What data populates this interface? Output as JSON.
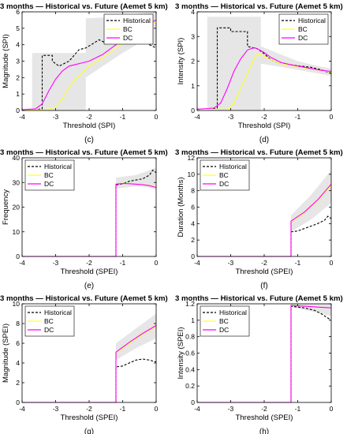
{
  "chart_data": [
    {
      "type": "line",
      "panel_label": "(c)",
      "title": "3 months — Historical vs. Future (Aemet 5 km)",
      "xlabel": "Threshold (SPI)",
      "ylabel": "Magnitude (SPI)",
      "xlim": [
        -4,
        0
      ],
      "ylim": [
        0,
        6
      ],
      "xticks": [
        -4,
        -3,
        -2,
        -1,
        0
      ],
      "yticks": [
        0,
        1,
        2,
        3,
        4,
        5,
        6
      ],
      "legend": [
        "Historical",
        "BC",
        "DC"
      ],
      "legend_position": "top-right",
      "series": [
        {
          "name": "Historical",
          "style": "dashed",
          "color": "#000000",
          "x": [
            -4,
            -3.6,
            -3.4,
            -3.4,
            -3.1,
            -3.1,
            -2.9,
            -2.6,
            -2.3,
            -2.1,
            -1.9,
            -1.7,
            -1.5,
            -1.3,
            -1.0,
            -0.7,
            -0.4,
            -0.2,
            0
          ],
          "y": [
            0.05,
            0.05,
            0.1,
            3.35,
            3.35,
            3.0,
            2.7,
            3.0,
            3.7,
            3.8,
            4.05,
            4.3,
            4.1,
            4.3,
            4.2,
            4.5,
            4.8,
            4.0,
            3.8
          ]
        },
        {
          "name": "BC",
          "style": "solid",
          "color": "#ffff33",
          "x": [
            -4,
            -3.3,
            -3.0,
            -2.8,
            -2.6,
            -2.4,
            -2.2,
            -2.0,
            -1.8,
            -1.6,
            -1.4,
            -1.2,
            -1.0,
            -0.8,
            -0.6,
            -0.4,
            -0.2,
            0
          ],
          "y": [
            0.05,
            0.05,
            0.2,
            0.7,
            1.4,
            1.9,
            2.3,
            2.7,
            2.95,
            3.2,
            3.5,
            3.8,
            4.1,
            4.5,
            4.8,
            5.0,
            5.2,
            5.4
          ]
        },
        {
          "name": "DC",
          "style": "solid",
          "color": "#ff00ff",
          "x": [
            -4,
            -3.6,
            -3.4,
            -3.2,
            -3.0,
            -2.8,
            -2.6,
            -2.4,
            -2.2,
            -2.0,
            -1.8,
            -1.6,
            -1.4,
            -1.2,
            -1.0,
            -0.8,
            -0.6,
            -0.4,
            -0.2,
            0
          ],
          "y": [
            0.05,
            0.1,
            0.4,
            1.2,
            1.9,
            2.4,
            2.7,
            2.8,
            2.9,
            3.0,
            3.2,
            3.4,
            3.7,
            4.0,
            4.3,
            4.6,
            4.9,
            5.1,
            5.3,
            5.5
          ]
        }
      ],
      "band": {
        "x": [
          -3.7,
          -3.7,
          -2.1,
          -2.1,
          -1.0,
          -0.5,
          0,
          0,
          -0.5,
          -1.0,
          -2.1,
          -2.1,
          -3.7
        ],
        "y": [
          0,
          3.5,
          3.5,
          5.6,
          5.7,
          5.9,
          6.0,
          3.9,
          4.1,
          3.5,
          2.0,
          0,
          0
        ]
      }
    },
    {
      "type": "line",
      "panel_label": "(d)",
      "title": "3 months — Historical vs. Future (Aemet 5 km)",
      "xlabel": "Threshold (SPI)",
      "ylabel": "Intensity (SPI)",
      "xlim": [
        -4,
        0
      ],
      "ylim": [
        0,
        4
      ],
      "xticks": [
        -4,
        -3,
        -2,
        -1,
        0
      ],
      "yticks": [
        0,
        1,
        2,
        3,
        4
      ],
      "legend": [
        "Historical",
        "BC",
        "DC"
      ],
      "legend_position": "top-right",
      "series": [
        {
          "name": "Historical",
          "style": "dashed",
          "color": "#000000",
          "x": [
            -4,
            -3.6,
            -3.4,
            -3.4,
            -3.0,
            -3.0,
            -2.5,
            -2.5,
            -2.2,
            -2.0,
            -1.8,
            -1.5,
            -1.2,
            -0.9,
            -0.6,
            -0.3,
            0
          ],
          "y": [
            0.05,
            0.05,
            0.1,
            3.35,
            3.35,
            3.2,
            3.2,
            2.6,
            2.5,
            2.3,
            2.05,
            1.9,
            1.85,
            1.8,
            1.75,
            1.65,
            1.5
          ]
        },
        {
          "name": "BC",
          "style": "solid",
          "color": "#ffff33",
          "x": [
            -4,
            -3.1,
            -2.9,
            -2.7,
            -2.5,
            -2.3,
            -2.2,
            -2.0,
            -1.8,
            -1.5,
            -1.2,
            -0.9,
            -0.6,
            -0.3,
            0
          ],
          "y": [
            0.05,
            0.05,
            0.3,
            0.9,
            1.5,
            2.1,
            2.3,
            2.2,
            2.05,
            1.9,
            1.82,
            1.75,
            1.68,
            1.62,
            1.56
          ]
        },
        {
          "name": "DC",
          "style": "solid",
          "color": "#ff00ff",
          "x": [
            -4,
            -3.5,
            -3.3,
            -3.1,
            -2.9,
            -2.7,
            -2.5,
            -2.3,
            -2.2,
            -2.0,
            -1.8,
            -1.5,
            -1.2,
            -0.9,
            -0.6,
            -0.3,
            0
          ],
          "y": [
            0.05,
            0.1,
            0.3,
            0.9,
            1.6,
            2.1,
            2.45,
            2.55,
            2.5,
            2.35,
            2.15,
            1.95,
            1.85,
            1.78,
            1.7,
            1.63,
            1.58
          ]
        }
      ],
      "band": {
        "x": [
          -3.7,
          -3.7,
          -2.1,
          -2.1,
          -1.0,
          -0.4,
          0,
          0,
          -0.4,
          -1.0,
          -2.1,
          -2.1,
          -3.7
        ],
        "y": [
          0,
          3.8,
          3.8,
          2.6,
          2.0,
          1.8,
          1.7,
          1.4,
          1.5,
          1.65,
          1.9,
          0,
          0
        ]
      }
    },
    {
      "type": "line",
      "panel_label": "(e)",
      "title": "3 months — Historical vs. Future (Aemet 5 km)",
      "xlabel": "Threshold (SPEI)",
      "ylabel": "Frequency",
      "xlim": [
        -4,
        0
      ],
      "ylim": [
        0,
        40
      ],
      "xticks": [
        -4,
        -3,
        -2,
        -1,
        0
      ],
      "yticks": [
        0,
        10,
        20,
        30,
        40
      ],
      "legend": [
        "Historical",
        "BC",
        "DC"
      ],
      "legend_position": "top-left",
      "series": [
        {
          "name": "Historical",
          "style": "dashed",
          "color": "#000000",
          "x": [
            -4,
            -1.2,
            -1.2,
            -1.0,
            -0.8,
            -0.6,
            -0.4,
            -0.2,
            -0.1,
            0
          ],
          "y": [
            0,
            0,
            29,
            29.5,
            30.5,
            31,
            31.5,
            33,
            35,
            34
          ]
        },
        {
          "name": "BC",
          "style": "solid",
          "color": "#ffff33",
          "x": [
            -4,
            -1.2,
            -1.2,
            -1.0,
            -0.8,
            -0.6,
            -0.4,
            -0.2,
            0
          ],
          "y": [
            0,
            0,
            29.5,
            29.7,
            29.6,
            29.4,
            29.2,
            28.8,
            28.2
          ]
        },
        {
          "name": "DC",
          "style": "solid",
          "color": "#ff00ff",
          "x": [
            -4,
            -1.2,
            -1.2,
            -1.0,
            -0.8,
            -0.6,
            -0.4,
            -0.2,
            0
          ],
          "y": [
            0,
            0,
            29.3,
            29.6,
            29.5,
            29.3,
            29.1,
            28.7,
            28.0
          ]
        }
      ],
      "band": {
        "x": [
          -1.2,
          -0.6,
          -0.2,
          0,
          0,
          -0.2,
          -0.6,
          -1.2
        ],
        "y": [
          32,
          33,
          35,
          36,
          27,
          28,
          28.5,
          27.5
        ]
      }
    },
    {
      "type": "line",
      "panel_label": "(f)",
      "title": "3 months — Historical vs. Future (Aemet 5 km)",
      "xlabel": "Threshold (SPEI)",
      "ylabel": "Duration (Months)",
      "xlim": [
        -4,
        0
      ],
      "ylim": [
        0,
        12
      ],
      "xticks": [
        -4,
        -3,
        -2,
        -1,
        0
      ],
      "yticks": [
        0,
        2,
        4,
        6,
        8,
        10,
        12
      ],
      "legend": [
        "Historical",
        "BC",
        "DC"
      ],
      "legend_position": "top-left",
      "series": [
        {
          "name": "Historical",
          "style": "dashed",
          "color": "#000000",
          "x": [
            -4,
            -1.2,
            -1.2,
            -1.0,
            -0.8,
            -0.6,
            -0.4,
            -0.2,
            -0.1,
            0
          ],
          "y": [
            0,
            0,
            3.0,
            3.1,
            3.4,
            3.7,
            4.0,
            4.4,
            4.9,
            4.6
          ]
        },
        {
          "name": "BC",
          "style": "solid",
          "color": "#ffff33",
          "x": [
            -4,
            -1.2,
            -1.2,
            -0.8,
            -0.4,
            0
          ],
          "y": [
            0,
            0,
            4.2,
            5.3,
            6.8,
            8.6
          ]
        },
        {
          "name": "DC",
          "style": "solid",
          "color": "#ff00ff",
          "x": [
            -4,
            -1.2,
            -1.2,
            -0.8,
            -0.4,
            0
          ],
          "y": [
            0,
            0,
            4.3,
            5.4,
            6.9,
            8.8
          ]
        }
      ],
      "band": {
        "x": [
          -1.2,
          -0.6,
          0,
          0,
          -0.6,
          -1.2
        ],
        "y": [
          5.0,
          7.5,
          10.5,
          6.5,
          4.5,
          3.0
        ]
      }
    },
    {
      "type": "line",
      "panel_label": "(g)",
      "title": "3 months — Historical vs. Future (Aemet 5 km)",
      "xlabel": "Threshold (SPEI)",
      "ylabel": "Magnitude (SPEI)",
      "xlim": [
        -4,
        0
      ],
      "ylim": [
        0,
        10
      ],
      "xticks": [
        -4,
        -3,
        -2,
        -1,
        0
      ],
      "yticks": [
        0,
        2,
        4,
        6,
        8,
        10
      ],
      "legend": [
        "Historical",
        "BC",
        "DC"
      ],
      "legend_position": "top-left",
      "series": [
        {
          "name": "Historical",
          "style": "dashed",
          "color": "#000000",
          "x": [
            -4,
            -1.2,
            -1.2,
            -1.0,
            -0.8,
            -0.6,
            -0.4,
            -0.2,
            0
          ],
          "y": [
            0,
            0,
            3.6,
            3.7,
            4.0,
            4.3,
            4.4,
            4.3,
            4.1
          ]
        },
        {
          "name": "BC",
          "style": "solid",
          "color": "#ffff33",
          "x": [
            -4,
            -1.2,
            -1.2,
            -0.8,
            -0.4,
            0
          ],
          "y": [
            0,
            0,
            5.0,
            6.0,
            6.9,
            7.7
          ]
        },
        {
          "name": "DC",
          "style": "solid",
          "color": "#ff00ff",
          "x": [
            -4,
            -1.2,
            -1.2,
            -0.8,
            -0.4,
            0
          ],
          "y": [
            0,
            0,
            5.1,
            6.1,
            7.0,
            7.8
          ]
        }
      ],
      "band": {
        "x": [
          -1.2,
          -0.6,
          0,
          0,
          -0.6,
          -1.2
        ],
        "y": [
          6.0,
          7.5,
          9.0,
          6.5,
          5.5,
          4.3
        ]
      }
    },
    {
      "type": "line",
      "panel_label": "(h)",
      "title": "3 months — Historical vs. Future (Aemet 5 km)",
      "xlabel": "Threshold (SPEI)",
      "ylabel": "Intensity (SPEI)",
      "xlim": [
        -4,
        0
      ],
      "ylim": [
        0,
        1.2
      ],
      "xticks": [
        -4,
        -3,
        -2,
        -1,
        0
      ],
      "yticks": [
        0,
        0.2,
        0.4,
        0.6,
        0.8,
        1,
        1.2
      ],
      "legend": [
        "Historical",
        "BC",
        "DC"
      ],
      "legend_position": "top-left",
      "series": [
        {
          "name": "Historical",
          "style": "dashed",
          "color": "#000000",
          "x": [
            -4,
            -1.2,
            -1.2,
            -0.8,
            -0.5,
            -0.3,
            -0.15,
            0
          ],
          "y": [
            0,
            0,
            1.17,
            1.15,
            1.12,
            1.08,
            1.04,
            1.0
          ]
        },
        {
          "name": "BC",
          "style": "solid",
          "color": "#ffff33",
          "x": [
            -4,
            -1.2,
            -1.2,
            -0.8,
            -0.4,
            0
          ],
          "y": [
            0,
            0,
            1.18,
            1.17,
            1.16,
            1.15
          ]
        },
        {
          "name": "DC",
          "style": "solid",
          "color": "#ff00ff",
          "x": [
            -4,
            -1.2,
            -1.2,
            -0.8,
            -0.4,
            0
          ],
          "y": [
            0,
            0,
            1.18,
            1.17,
            1.16,
            1.15
          ]
        }
      ],
      "band": {
        "x": [
          -1.2,
          -0.5,
          0,
          0,
          -0.5,
          -1.2
        ],
        "y": [
          1.2,
          1.2,
          1.2,
          1.05,
          1.1,
          1.16
        ]
      }
    }
  ]
}
